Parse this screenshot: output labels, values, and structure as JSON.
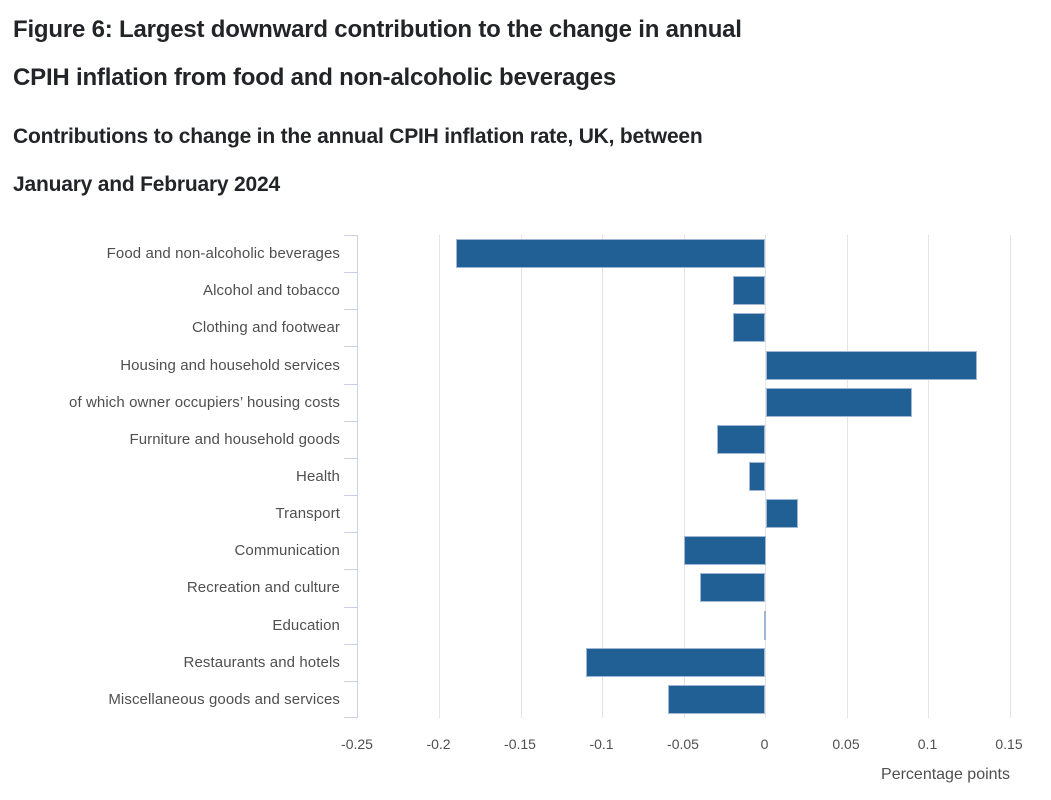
{
  "figure": {
    "title_lines": [
      "Figure 6: Largest downward contribution to the change in annual",
      "CPIH inflation from food and non-alcoholic beverages"
    ],
    "subtitle_lines": [
      "Contributions to change in the annual CPIH inflation rate, UK, between",
      "January and February 2024"
    ]
  },
  "colors": {
    "bar": "#206095",
    "bar_border": "#9fb6d4",
    "gridline": "#e4e4e4",
    "axis": "#c9d2e4",
    "title_text": "#222427",
    "axis_text": "#4f4f51"
  },
  "chart_data": {
    "type": "bar",
    "orientation": "horizontal",
    "title": "Figure 6: Largest downward contribution to the change in annual CPIH inflation from food and non-alcoholic beverages",
    "subtitle": "Contributions to change in the annual CPIH inflation rate, UK, between January and February 2024",
    "categories": [
      "Food and non-alcoholic beverages",
      "Alcohol and tobacco",
      "Clothing and footwear",
      "Housing and household services",
      "of which owner occupiers’ housing costs",
      "Furniture and household goods",
      "Health",
      "Transport",
      "Communication",
      "Recreation and culture",
      "Education",
      "Restaurants and hotels",
      "Miscellaneous goods and services"
    ],
    "values": [
      -0.19,
      -0.02,
      -0.02,
      0.13,
      0.09,
      -0.03,
      -0.01,
      0.02,
      -0.05,
      -0.04,
      0,
      -0.11,
      -0.06
    ],
    "xlabel": "Percentage points",
    "ylabel": "",
    "xlim": [
      -0.25,
      0.15
    ],
    "xticks": [
      {
        "v": -0.25,
        "label": "-0.25"
      },
      {
        "v": -0.2,
        "label": "-0.2"
      },
      {
        "v": -0.15,
        "label": "-0.15"
      },
      {
        "v": -0.1,
        "label": "-0.1"
      },
      {
        "v": -0.05,
        "label": "-0.05"
      },
      {
        "v": 0,
        "label": "0"
      },
      {
        "v": 0.05,
        "label": "0.05"
      },
      {
        "v": 0.1,
        "label": "0.1"
      },
      {
        "v": 0.15,
        "label": "0.15"
      }
    ],
    "grid": true,
    "legend": "none"
  }
}
